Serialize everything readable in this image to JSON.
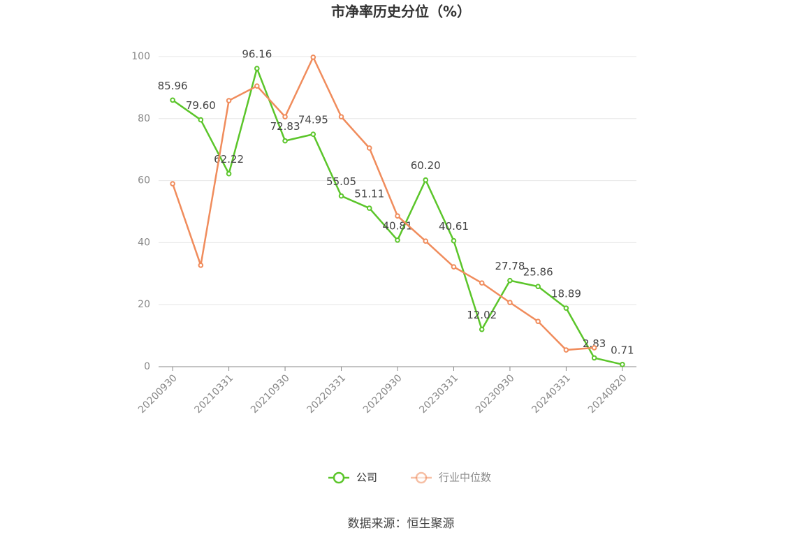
{
  "chart_data": {
    "type": "line",
    "title": "市净率历史分位（%）",
    "categories": [
      "20200930",
      null,
      "20210331",
      null,
      "20210930",
      null,
      "20220331",
      null,
      "20220930",
      null,
      "20230331",
      null,
      "20230930",
      null,
      "20240331",
      null,
      "20240820"
    ],
    "series": [
      {
        "name": "公司",
        "color": "#5bc52a",
        "values": [
          85.96,
          79.6,
          62.22,
          96.16,
          72.83,
          74.95,
          55.05,
          51.11,
          40.81,
          60.2,
          40.61,
          12.02,
          27.78,
          25.86,
          18.89,
          2.83,
          0.71
        ],
        "value_labels": [
          "85.96",
          "79.60",
          "62.22",
          "96.16",
          "72.83",
          "74.95",
          "55.05",
          "51.11",
          "40.81",
          "60.20",
          "40.61",
          "12.02",
          "27.78",
          "25.86",
          "18.89",
          "2.83",
          "0.71"
        ]
      },
      {
        "name": "行业中位数",
        "color": "#f08c5c",
        "values": [
          59.0,
          32.7,
          85.8,
          90.5,
          80.6,
          99.8,
          80.6,
          70.5,
          48.6,
          40.5,
          32.2,
          27.0,
          20.7,
          14.6,
          5.4,
          6.1,
          null
        ]
      }
    ],
    "ylim": [
      0,
      100
    ],
    "yticks": [
      0,
      20,
      40,
      60,
      80,
      100
    ],
    "grid": true,
    "legend": "bottom",
    "source": "数据来源：恒生聚源"
  }
}
